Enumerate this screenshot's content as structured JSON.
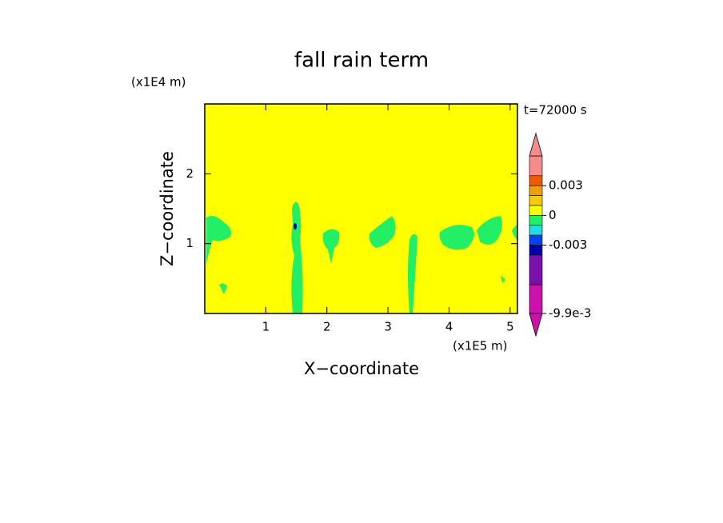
{
  "chart_data": {
    "type": "contour",
    "title": "fall rain term",
    "time_label": "t=72000 s",
    "x_label": "X−coordinate",
    "y_label": "Z−coordinate",
    "x_unit": "(x1E5 m)",
    "y_unit": "(x1E4 m)",
    "xlim": [
      0,
      5.12
    ],
    "xticks": [
      1,
      2,
      3,
      4,
      5
    ],
    "ylim": [
      0,
      3
    ],
    "yticks": [
      1,
      2
    ],
    "background_color": "#ffff00",
    "field_color": "#22ee66",
    "colorbar": {
      "levels": [
        0.006,
        0.004,
        0.003,
        0.002,
        0.001,
        0,
        -0.001,
        -0.002,
        -0.003,
        -0.004,
        -0.007,
        -0.0099
      ],
      "colors": [
        "#f48c8c",
        "#f05a00",
        "#f0a000",
        "#f8cc00",
        "#ffff00",
        "#22ee66",
        "#22dddd",
        "#0044ee",
        "#0000aa",
        "#7711aa",
        "#cc11aa"
      ],
      "over_color": "#f48c8c",
      "under_color": "#cc11aa",
      "ticks": [
        0.003,
        0,
        -0.003,
        {
          "value": -0.0099,
          "label": "-9.9e-3"
        }
      ]
    }
  }
}
